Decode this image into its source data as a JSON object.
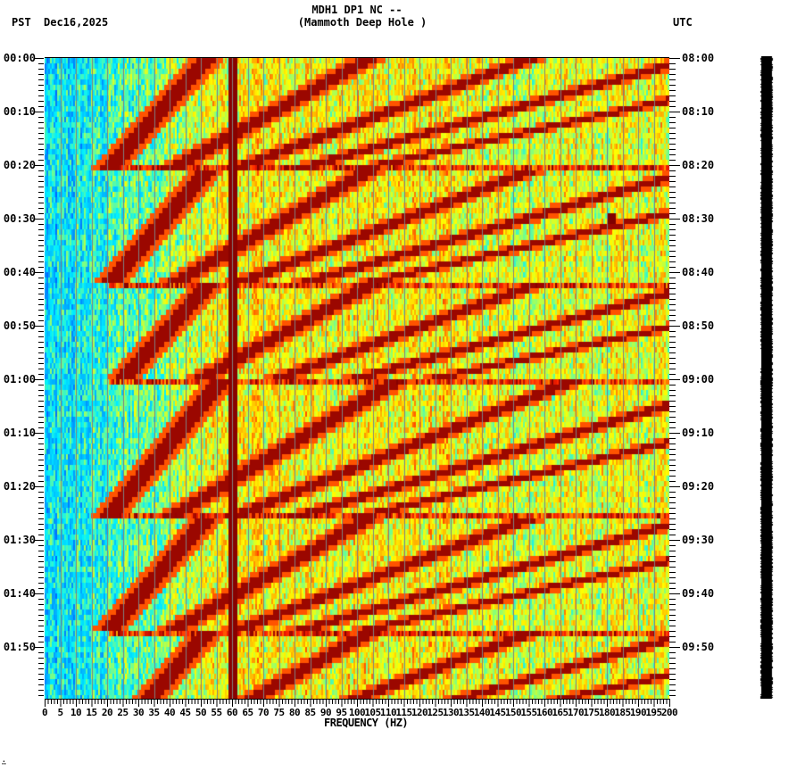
{
  "header": {
    "title": "MDH1 DP1 NC --",
    "subtitle": "(Mammoth Deep Hole )",
    "left_timezone": "PST",
    "date": "Dec16,2025",
    "right_timezone": "UTC"
  },
  "footer": {
    "corner_mark": "∴"
  },
  "chart_data": {
    "type": "heatmap",
    "title": "MDH1 DP1 NC -- (Mammoth Deep Hole )",
    "xlabel": "FREQUENCY (HZ)",
    "ylabel_left": "PST",
    "ylabel_right": "UTC",
    "xlim": [
      0,
      200
    ],
    "ylim_minutes": [
      0,
      120
    ],
    "x_ticks": [
      0,
      5,
      10,
      15,
      20,
      25,
      30,
      35,
      40,
      45,
      50,
      55,
      60,
      65,
      70,
      75,
      80,
      85,
      90,
      95,
      100,
      105,
      110,
      115,
      120,
      125,
      130,
      135,
      140,
      145,
      150,
      155,
      160,
      165,
      170,
      175,
      180,
      185,
      190,
      195,
      200
    ],
    "x_tick_labels": [
      "0",
      "5",
      "10",
      "15",
      "20",
      "25",
      "30",
      "35",
      "40",
      "45",
      "50",
      "55",
      "60",
      "65",
      "70",
      "75",
      "80",
      "85",
      "90",
      "95",
      "100",
      "105",
      "110",
      "115",
      "120",
      "125",
      "130",
      "135",
      "140",
      "145",
      "150",
      "155",
      "160",
      "165",
      "170",
      "175",
      "180",
      "185",
      "190",
      "195",
      "200"
    ],
    "y_ticks_left": [
      "00:00",
      "00:10",
      "00:20",
      "00:30",
      "00:40",
      "00:50",
      "01:00",
      "01:10",
      "01:20",
      "01:30",
      "01:40",
      "01:50"
    ],
    "y_ticks_right": [
      "08:00",
      "08:10",
      "08:20",
      "08:30",
      "08:40",
      "08:50",
      "09:00",
      "09:10",
      "09:20",
      "09:30",
      "09:40",
      "09:50"
    ],
    "minor_tick_minutes": 1,
    "grid": {
      "vertical_every_hz": 5,
      "color": "#808080"
    },
    "colormap": [
      "#0050ff",
      "#00a0ff",
      "#00f0ff",
      "#80ff80",
      "#ffff00",
      "#ffa000",
      "#ff2000",
      "#800000"
    ],
    "background_level_low_freq": 0.22,
    "background_level_high_freq": 0.58,
    "line_60hz": {
      "freq_hz": 60,
      "width_hz": 1.2,
      "level": 1.0
    },
    "pump_cycles": [
      {
        "start_min": -0.5,
        "end_min": 20.4,
        "f_start_hz": 52,
        "f_end_hz": 20
      },
      {
        "start_min": 20.4,
        "end_min": 42.0,
        "f_start_hz": 52,
        "f_end_hz": 20
      },
      {
        "start_min": 42.0,
        "end_min": 60.0,
        "f_start_hz": 52,
        "f_end_hz": 24
      },
      {
        "start_min": 60.0,
        "end_min": 85.3,
        "f_start_hz": 56,
        "f_end_hz": 20
      },
      {
        "start_min": 85.3,
        "end_min": 106.7,
        "f_start_hz": 52,
        "f_end_hz": 20
      },
      {
        "start_min": 106.7,
        "end_min": 128.0,
        "f_start_hz": 52,
        "f_end_hz": 20
      }
    ],
    "harmonics": [
      1,
      2,
      3,
      4,
      5
    ],
    "harmonic_width_hz": [
      3.2,
      3.6,
      3.8,
      4.0,
      4.0
    ],
    "reset_lines_min": [
      20.4,
      42.0,
      60.0,
      85.3,
      106.7
    ],
    "isolated_events": [
      {
        "freq_hz": 181,
        "minute": 29.5,
        "level": 1.0
      }
    ]
  },
  "trace_bar": {
    "color": "#000000"
  }
}
